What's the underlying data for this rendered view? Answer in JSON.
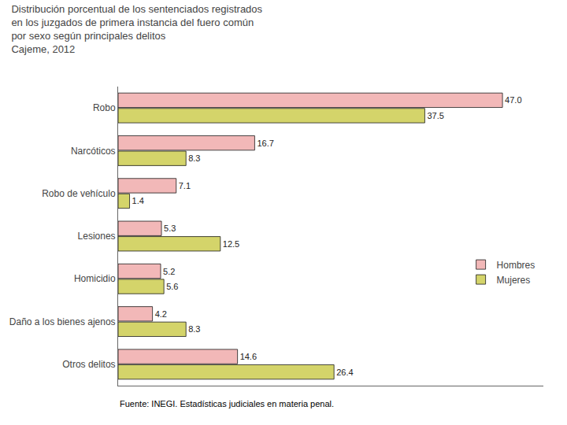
{
  "chart_data": {
    "type": "bar",
    "orientation": "horizontal",
    "title": "Distribución porcentual de los sentenciados registrados\nen los juzgados de primera instancia del fuero común\npor sexo según principales delitos\nCajeme, 2012",
    "categories": [
      "Otros delitos",
      "Daño a los bienes ajenos",
      "Homicidio",
      "Lesiones",
      "Robo de vehículo",
      "Narcóticos",
      "Robo"
    ],
    "series": [
      {
        "name": "Hombres",
        "color": "#f2b8b8",
        "values": [
          14.6,
          4.2,
          5.2,
          5.3,
          7.1,
          16.7,
          47.0
        ],
        "value_labels": [
          "14.6",
          "4.2",
          "5.2",
          "5.3",
          "7.1",
          "16.7",
          "47.0"
        ]
      },
      {
        "name": "Mujeres",
        "color": "#d4d46a",
        "values": [
          26.4,
          8.3,
          5.6,
          12.5,
          1.4,
          8.3,
          37.5
        ],
        "value_labels": [
          "26.4",
          "8.3",
          "5.6",
          "12.5",
          "1.4",
          "8.3",
          "37.5"
        ]
      }
    ],
    "xlim": [
      0,
      52
    ],
    "xticks": [],
    "tick_labels": "y",
    "data_labels": true,
    "grid": false,
    "legend": "right",
    "annotations": [
      {
        "text": "Fuente: INEGI. Estadísticas judiciales en materia penal."
      }
    ]
  }
}
